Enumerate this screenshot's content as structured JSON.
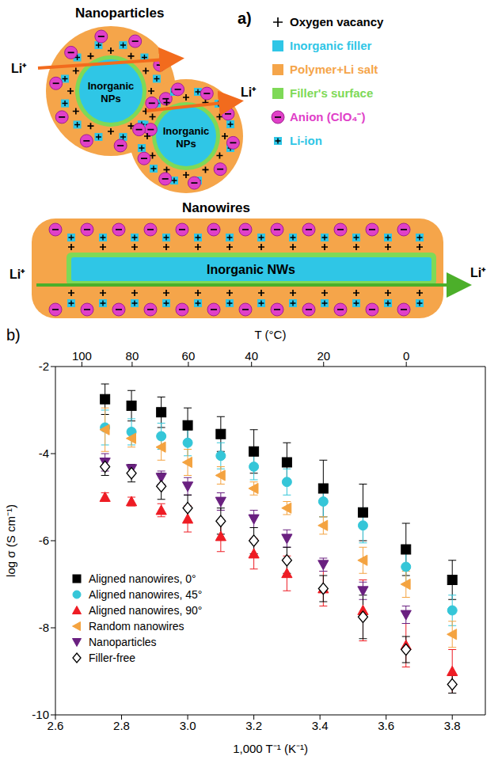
{
  "diagram": {
    "label": "a)",
    "nanoparticles": {
      "title": "Nanoparticles",
      "filler_label": "Inorganic NPs",
      "ion_label": "Li⁺"
    },
    "nanowires": {
      "title": "Nanowires",
      "filler_label": "Inorganic NWs",
      "ion_label": "Li⁺"
    },
    "legend": [
      {
        "text": "Oxygen vacancy",
        "color": "#000000"
      },
      {
        "text": "Inorganic filler",
        "color": "#2fc6e6"
      },
      {
        "text": "Polymer+Li salt",
        "color": "#f5a54a"
      },
      {
        "text": "Filler's surface",
        "color": "#7ed957"
      },
      {
        "text": "Anion (ClO₄⁻)",
        "color": "#e040c8"
      },
      {
        "text": "Li-ion",
        "color": "#2fc6e6"
      }
    ]
  },
  "chart_data": {
    "type": "scatter",
    "panel_label": "b)",
    "xlabel": "1,000 T⁻¹ (K⁻¹)",
    "x2label": "T (°C)",
    "ylabel": "log σ (S cm⁻¹)",
    "x": [
      2.75,
      2.83,
      2.92,
      3.0,
      3.1,
      3.2,
      3.3,
      3.41,
      3.53,
      3.66,
      3.8
    ],
    "xlim": [
      2.6,
      3.9
    ],
    "xticks": [
      2.6,
      2.8,
      {
        "value": 3.0,
        "label": "3.0"
      },
      3.2,
      3.4,
      3.6,
      3.8
    ],
    "x2lim": [
      2.6,
      3.9
    ],
    "x2ticks": [
      {
        "value": 2.68,
        "label": "100"
      },
      {
        "value": 2.832,
        "label": "80"
      },
      {
        "value": 3.002,
        "label": "60"
      },
      {
        "value": 3.193,
        "label": "40"
      },
      {
        "value": 3.411,
        "label": "20"
      },
      {
        "value": 3.661,
        "label": "0"
      }
    ],
    "ylim": [
      -10,
      -2
    ],
    "yticks": [
      -10,
      -8,
      -6,
      -4,
      -2
    ],
    "legend": "lower left",
    "series": [
      {
        "name": "Aligned nanowires, 0°",
        "color": "#000000",
        "marker": "square",
        "values": [
          -2.75,
          -2.9,
          -3.05,
          -3.35,
          -3.55,
          -3.95,
          -4.2,
          -4.8,
          -5.35,
          -6.2,
          -6.9
        ],
        "errors": [
          0.35,
          0.35,
          0.35,
          0.4,
          0.4,
          0.5,
          0.45,
          0.65,
          0.65,
          0.6,
          0.45
        ]
      },
      {
        "name": "Aligned nanowires, 45°",
        "color": "#35c6d8",
        "marker": "circle",
        "values": [
          -3.4,
          -3.5,
          -3.6,
          -3.75,
          -4.05,
          -4.3,
          -4.65,
          -5.1,
          -5.65,
          -6.6,
          -7.6
        ],
        "errors": [
          0.4,
          0.3,
          0.3,
          0.3,
          0.3,
          0.3,
          0.3,
          0.35,
          0.4,
          0.4,
          0.35
        ]
      },
      {
        "name": "Aligned nanowires, 90°",
        "color": "#ee1c24",
        "marker": "triangle",
        "values": [
          -5.0,
          -5.1,
          -5.3,
          -5.5,
          -5.9,
          -6.3,
          -6.75,
          -7.1,
          -7.6,
          -8.4,
          -9.0
        ],
        "errors": [
          0.1,
          0.1,
          0.15,
          0.3,
          0.35,
          0.35,
          0.4,
          0.4,
          0.7,
          0.5,
          0.5
        ]
      },
      {
        "name": "Random nanowires",
        "color": "#f4a340",
        "marker": "triangle-left",
        "values": [
          -3.45,
          -3.65,
          -3.85,
          -4.2,
          -4.5,
          -4.8,
          -5.25,
          -5.65,
          -6.45,
          -7.0,
          -8.15
        ],
        "errors": [
          0.5,
          0.2,
          0.3,
          0.3,
          0.2,
          0.15,
          0.15,
          0.2,
          0.3,
          0.3,
          0.3
        ]
      },
      {
        "name": "Nanoparticles",
        "color": "#6a2080",
        "marker": "triangle-down",
        "values": [
          -4.2,
          -4.35,
          -4.55,
          -4.75,
          -5.1,
          -5.5,
          -5.95,
          -6.55,
          -7.15,
          -7.7,
          null
        ],
        "errors": [
          0.2,
          0.1,
          0.15,
          0.2,
          0.2,
          0.2,
          0.2,
          0.15,
          0.2,
          0.2,
          null
        ]
      },
      {
        "name": "Filler-free",
        "color": "#000000",
        "marker": "diamond-open",
        "values": [
          -4.3,
          -4.45,
          -4.75,
          -5.25,
          -5.55,
          -6.0,
          -6.45,
          -7.1,
          -7.75,
          -8.5,
          -9.3
        ],
        "errors": [
          0.2,
          0.2,
          0.3,
          0.3,
          0.3,
          0.3,
          0.3,
          0.3,
          0.5,
          0.3,
          0.2
        ]
      }
    ]
  }
}
